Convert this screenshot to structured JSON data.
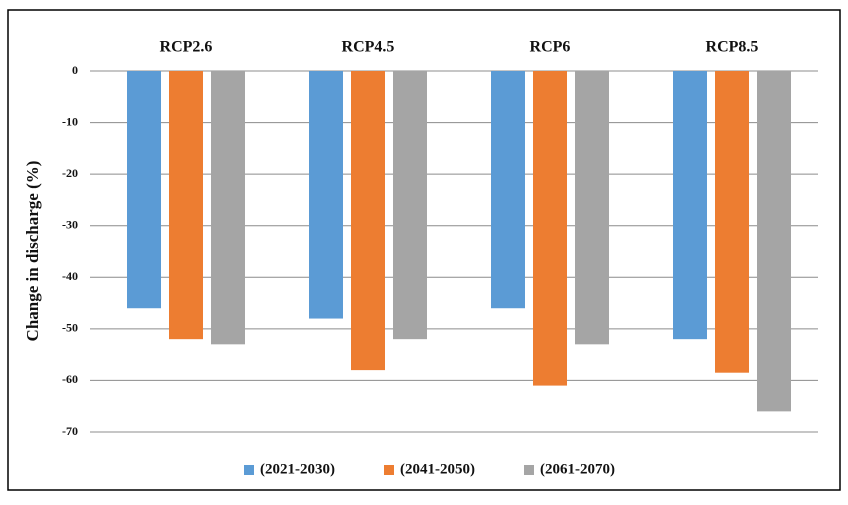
{
  "chart_data": {
    "type": "bar",
    "y_label": "Change in discharge (%)",
    "categories": [
      "RCP2.6",
      "RCP4.5",
      "RCP6",
      "RCP8.5"
    ],
    "series": [
      {
        "name": "(2021-2030)",
        "color": "#5b9bd5",
        "values": [
          -46,
          -48,
          -46,
          -52
        ]
      },
      {
        "name": "(2041-2050)",
        "color": "#ed7d31",
        "values": [
          -52,
          -58,
          -61,
          -58.5
        ]
      },
      {
        "name": "(2061-2070)",
        "color": "#a5a5a5",
        "values": [
          -53,
          -52,
          -53,
          -66
        ]
      }
    ],
    "ylim": [
      -70,
      0
    ],
    "yticks": [
      0,
      -10,
      -20,
      -30,
      -40,
      -50,
      -60,
      -70
    ],
    "grid": true,
    "legend": "bottom"
  }
}
